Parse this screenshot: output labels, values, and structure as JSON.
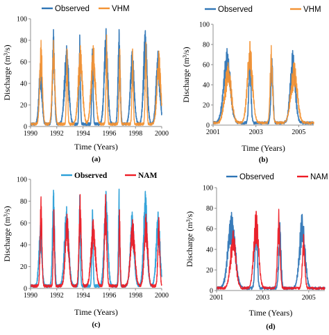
{
  "colors": {
    "observed_dark": "#2e75b6",
    "observed_light": "#2a9fd8",
    "vhm": "#f39233",
    "nam": "#ee1c25",
    "axis": "#8c8c8c"
  },
  "chart_data": [
    {
      "type": "line",
      "panel_label": "(a)",
      "xlabel": "Time (Years)",
      "ylabel": "Discharge (m³/s)",
      "xlim": [
        1990,
        2000
      ],
      "ylim": [
        0,
        100
      ],
      "xticks": [
        "1990",
        "1992",
        "1994",
        "1996",
        "1998",
        "2000"
      ],
      "yticks": [
        "0",
        "20",
        "40",
        "60",
        "80",
        "100"
      ],
      "legend": {
        "placement": "top",
        "style": "plain"
      },
      "series": [
        {
          "name": "Observed",
          "color": "#2e75b6",
          "peaks": [
            {
              "t": 1990.75,
              "v": 58
            },
            {
              "t": 1991.75,
              "v": 90
            },
            {
              "t": 1992.75,
              "v": 75
            },
            {
              "t": 1993.75,
              "v": 85
            },
            {
              "t": 1994.72,
              "v": 72
            },
            {
              "t": 1995.75,
              "v": 89
            },
            {
              "t": 1996.75,
              "v": 90
            },
            {
              "t": 1997.75,
              "v": 70
            },
            {
              "t": 1998.75,
              "v": 89
            },
            {
              "t": 1999.72,
              "v": 70
            }
          ]
        },
        {
          "name": "VHM",
          "color": "#f39233",
          "peaks": [
            {
              "t": 1990.8,
              "v": 80
            },
            {
              "t": 1991.75,
              "v": 80
            },
            {
              "t": 1992.78,
              "v": 72
            },
            {
              "t": 1993.8,
              "v": 75
            },
            {
              "t": 1994.78,
              "v": 75
            },
            {
              "t": 1995.8,
              "v": 85
            },
            {
              "t": 1996.8,
              "v": 72
            },
            {
              "t": 1997.78,
              "v": 72
            },
            {
              "t": 1998.8,
              "v": 78
            },
            {
              "t": 1999.78,
              "v": 70
            }
          ]
        }
      ]
    },
    {
      "type": "line",
      "panel_label": "(b)",
      "xlabel": "Time (Years)",
      "ylabel": "Discharge (m³/s)",
      "xlim": [
        2001,
        2005.7
      ],
      "ylim": [
        0,
        100
      ],
      "xticks": [
        "2001",
        "2003",
        "2005"
      ],
      "yticks": [
        "0",
        "20",
        "40",
        "60",
        "80",
        "100"
      ],
      "legend": {
        "placement": "top",
        "style": "plain"
      },
      "series": [
        {
          "name": "Observed",
          "color": "#2e75b6",
          "peaks": [
            {
              "t": 2001.65,
              "v": 76
            },
            {
              "t": 2002.72,
              "v": 72
            },
            {
              "t": 2003.75,
              "v": 66
            },
            {
              "t": 2004.72,
              "v": 74
            }
          ]
        },
        {
          "name": "VHM",
          "color": "#f39233",
          "peaks": [
            {
              "t": 2001.7,
              "v": 62
            },
            {
              "t": 2002.72,
              "v": 83
            },
            {
              "t": 2003.72,
              "v": 79
            },
            {
              "t": 2004.78,
              "v": 62
            }
          ]
        }
      ]
    },
    {
      "type": "line",
      "panel_label": "(c)",
      "xlabel": "Time (Years)",
      "ylabel": "Discharge (m³/s)",
      "xlim": [
        1990,
        2000
      ],
      "ylim": [
        0,
        100
      ],
      "xticks": [
        "1990",
        "1992",
        "1994",
        "1996",
        "1998",
        "2000"
      ],
      "yticks": [
        "0",
        "20",
        "40",
        "60",
        "80",
        "100"
      ],
      "legend": {
        "placement": "top",
        "style": "bold"
      },
      "series": [
        {
          "name": "Observed",
          "color": "#2a9fd8",
          "peaks": [
            {
              "t": 1990.75,
              "v": 58
            },
            {
              "t": 1991.75,
              "v": 90
            },
            {
              "t": 1992.75,
              "v": 75
            },
            {
              "t": 1993.75,
              "v": 85
            },
            {
              "t": 1994.72,
              "v": 72
            },
            {
              "t": 1995.75,
              "v": 89
            },
            {
              "t": 1996.75,
              "v": 91
            },
            {
              "t": 1997.75,
              "v": 70
            },
            {
              "t": 1998.75,
              "v": 89
            },
            {
              "t": 1999.72,
              "v": 70
            }
          ]
        },
        {
          "name": "NAM",
          "color": "#ee1c25",
          "peaks": [
            {
              "t": 1990.8,
              "v": 84
            },
            {
              "t": 1991.78,
              "v": 72
            },
            {
              "t": 1992.78,
              "v": 68
            },
            {
              "t": 1993.78,
              "v": 86
            },
            {
              "t": 1994.78,
              "v": 63
            },
            {
              "t": 1995.72,
              "v": 86
            },
            {
              "t": 1996.78,
              "v": 72
            },
            {
              "t": 1997.78,
              "v": 63
            },
            {
              "t": 1998.8,
              "v": 68
            },
            {
              "t": 1999.78,
              "v": 65
            }
          ]
        }
      ]
    },
    {
      "type": "line",
      "panel_label": "(d)",
      "xlabel": "Time (Years)",
      "ylabel": "Discharge (m³/s)",
      "xlim": [
        2001,
        2005.7
      ],
      "ylim": [
        0,
        100
      ],
      "xticks": [
        "2001",
        "2003",
        "2005"
      ],
      "yticks": [
        "0",
        "20",
        "40",
        "60",
        "80",
        "100"
      ],
      "legend": {
        "placement": "top",
        "style": "plain"
      },
      "series": [
        {
          "name": "Observed",
          "color": "#2e75b6",
          "peaks": [
            {
              "t": 2001.65,
              "v": 76
            },
            {
              "t": 2002.72,
              "v": 72
            },
            {
              "t": 2003.75,
              "v": 66
            },
            {
              "t": 2004.72,
              "v": 74
            }
          ]
        },
        {
          "name": "NAM",
          "color": "#ee1c25",
          "peaks": [
            {
              "t": 2001.72,
              "v": 58
            },
            {
              "t": 2002.72,
              "v": 77
            },
            {
              "t": 2003.7,
              "v": 79
            },
            {
              "t": 2004.78,
              "v": 53
            }
          ]
        }
      ]
    }
  ]
}
